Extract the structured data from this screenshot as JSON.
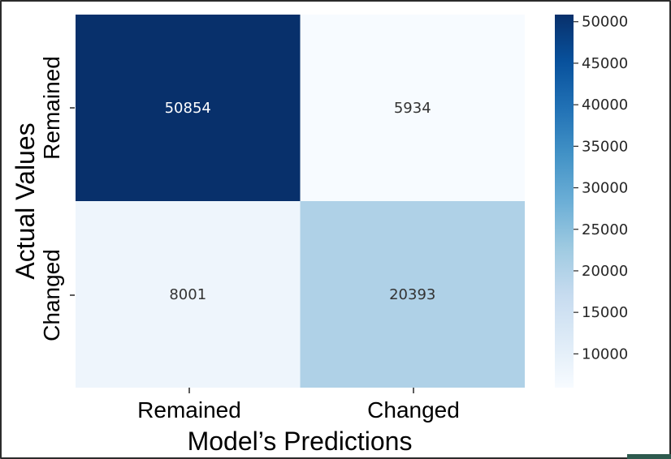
{
  "chart_data": {
    "type": "heatmap",
    "title": "",
    "xlabel": "Model’s Predictions",
    "ylabel": "Actual Values",
    "x_categories": [
      "Remained",
      "Changed"
    ],
    "y_categories": [
      "Remained",
      "Changed"
    ],
    "values": [
      [
        50854,
        5934
      ],
      [
        8001,
        20393
      ]
    ],
    "colormap": "Blues",
    "colorbar": {
      "min": 5934,
      "max": 50854,
      "ticks": [
        10000,
        15000,
        20000,
        25000,
        30000,
        35000,
        40000,
        45000,
        50000
      ]
    },
    "dark_text_color": "#333333",
    "light_text_color": "#ffffff"
  }
}
